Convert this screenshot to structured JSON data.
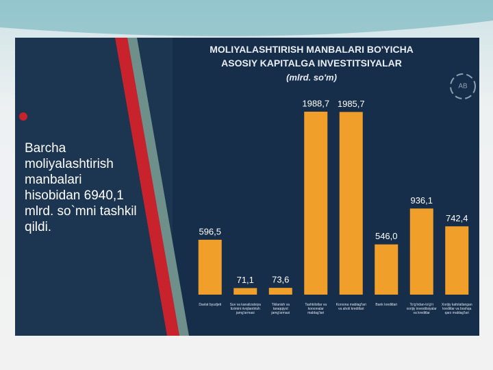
{
  "slide": {
    "text": "Barcha moliyalashtirish manbalari hisobidan 6940,1 mlrd. so`mni tashkil qildi.",
    "logo": "AB"
  },
  "chart_data": {
    "type": "bar",
    "title": "MOLIYALASHTIRISH MANBALARI BO'YICHA ASOSIY KAPITALGA INVESTITSIYALAR",
    "subtitle": "(mlrd. so'm)",
    "categories": [
      "Davlat byudjeti",
      "Suv va kanalizatsiya tizimini rivojlantirish jamg'armasi",
      "Tiklanish va taraqqiyot jamg'armasi",
      "Tashkilotlar va korxonalar mablag'lari",
      "Korxona mablag'lari va aholi kreditlari",
      "Bank kreditlari",
      "To'g'ridan-to'g'ri xorijiy investitsiyalar va kreditlar",
      "Xorijiy kafolatlangan kreditlar va boshqa qarz mablag'lari"
    ],
    "values": [
      596.5,
      71.1,
      73.6,
      1988.7,
      1985.7,
      546.0,
      936.1,
      742.4
    ],
    "value_labels": [
      "596,5",
      "71,1",
      "73,6",
      "1988,7",
      "1985,7",
      "546,0",
      "936,1",
      "742,4"
    ],
    "color": "#f0a02a"
  }
}
